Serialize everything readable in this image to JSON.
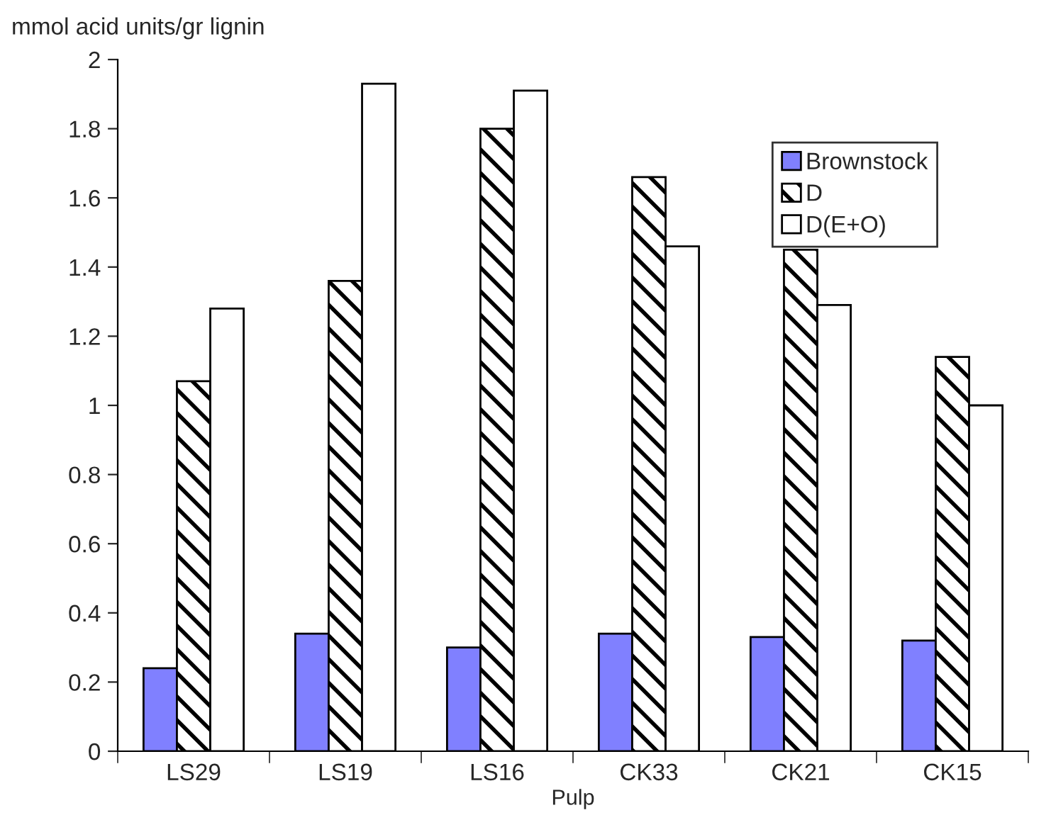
{
  "chart_data": {
    "type": "bar",
    "ylabel": "mmol acid units/gr lignin",
    "xlabel": "Pulp",
    "categories": [
      "LS29",
      "LS19",
      "LS16",
      "CK33",
      "CK21",
      "CK15"
    ],
    "series": [
      {
        "name": "Brownstock",
        "color": "#8080ff",
        "values": [
          0.24,
          0.34,
          0.3,
          0.34,
          0.33,
          0.32
        ]
      },
      {
        "name": "D",
        "color": "#000000",
        "values": [
          1.07,
          1.36,
          1.8,
          1.66,
          1.45,
          1.14
        ]
      },
      {
        "name": "D(E+O)",
        "color": "#ffffff",
        "values": [
          1.28,
          1.93,
          1.91,
          1.46,
          1.29,
          1.0
        ]
      }
    ],
    "ylim": [
      0,
      2
    ],
    "yticks": [
      0,
      0.2,
      0.4,
      0.6,
      0.8,
      1,
      1.2,
      1.4,
      1.6,
      1.8,
      2
    ],
    "grid": false,
    "legend": "top right"
  }
}
